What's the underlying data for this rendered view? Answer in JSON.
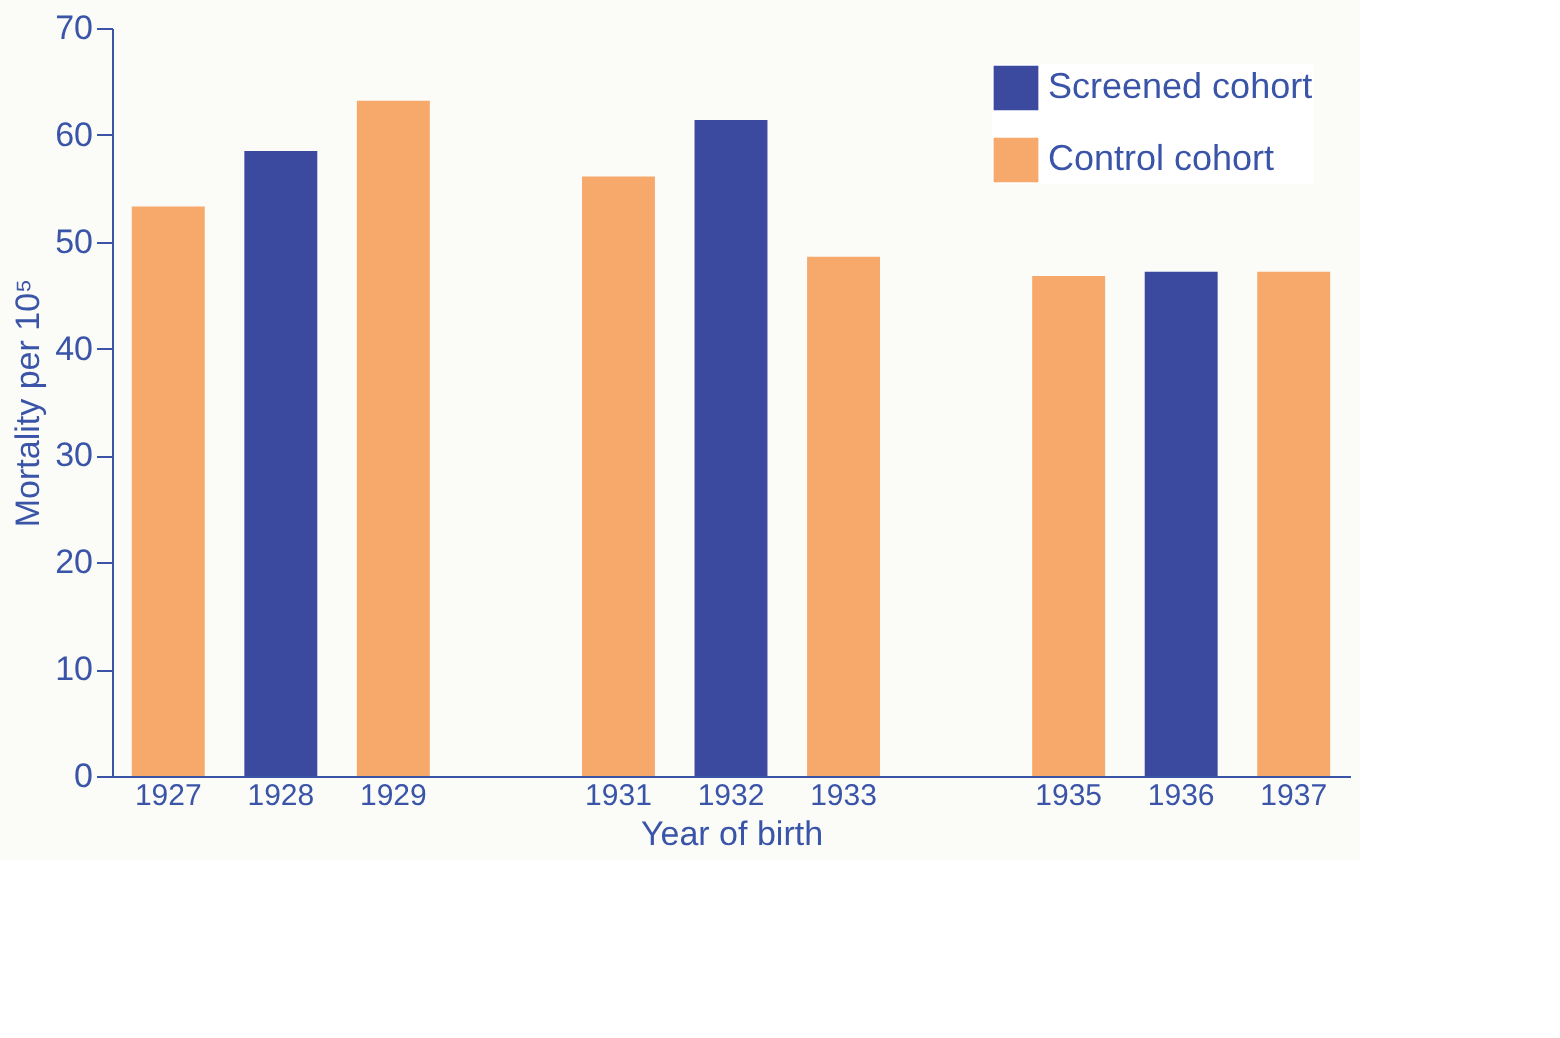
{
  "chart_data": {
    "type": "bar",
    "xlabel": "Year of birth",
    "ylabel": "Mortality per 10⁵",
    "categories": [
      "1927",
      "1928",
      "1929",
      null,
      "1931",
      "1932",
      "1933",
      null,
      "1935",
      "1936",
      "1937"
    ],
    "series": [
      {
        "name": "Screened cohort",
        "color": "#3b4a9e",
        "values": [
          null,
          58.5,
          null,
          null,
          null,
          61.4,
          null,
          null,
          null,
          47.2,
          null
        ]
      },
      {
        "name": "Control cohort",
        "color": "#f6a96b",
        "values": [
          53.3,
          null,
          63.2,
          null,
          56.1,
          null,
          48.6,
          null,
          46.8,
          null,
          47.2
        ]
      }
    ],
    "ylim": [
      0,
      70
    ],
    "yticks": [
      0,
      10,
      20,
      30,
      40,
      50,
      60,
      70
    ],
    "grid": false,
    "legend": "top right"
  }
}
